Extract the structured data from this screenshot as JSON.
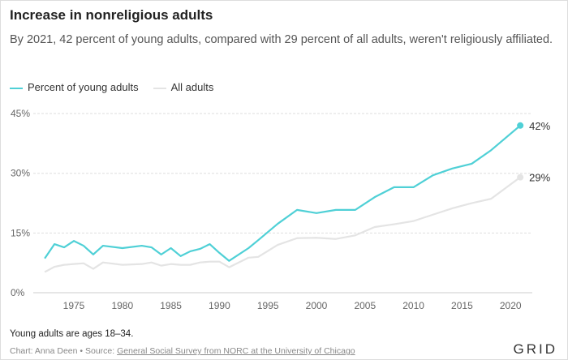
{
  "chart_data": {
    "type": "line",
    "title": "Increase in nonreligious adults",
    "subtitle": "By 2021, 42 percent of young adults, compared with 29 percent of all adults, weren't religiously affiliated.",
    "x": [
      1972,
      1973,
      1974,
      1975,
      1976,
      1977,
      1978,
      1980,
      1982,
      1983,
      1984,
      1985,
      1986,
      1987,
      1988,
      1989,
      1990,
      1991,
      1993,
      1994,
      1996,
      1998,
      2000,
      2002,
      2004,
      2006,
      2008,
      2010,
      2012,
      2014,
      2016,
      2018,
      2021
    ],
    "series": [
      {
        "name": "Percent of young adults",
        "color": "#4fd0d6",
        "end_label": "42%",
        "values": [
          8.6,
          12.2,
          11.4,
          13,
          11.8,
          9.6,
          11.8,
          11.2,
          11.8,
          11.4,
          9.6,
          11.2,
          9.2,
          10.4,
          11,
          12.2,
          10,
          8,
          11.2,
          13.2,
          17.3,
          20.8,
          20,
          20.8,
          20.8,
          24,
          26.5,
          26.5,
          29.5,
          31.2,
          32.4,
          35.8,
          42
        ]
      },
      {
        "name": "All adults",
        "color": "#e4e4e4",
        "end_label": "29%",
        "values": [
          5.2,
          6.5,
          7,
          7.2,
          7.4,
          6,
          7.6,
          7,
          7.2,
          7.6,
          6.8,
          7.2,
          7,
          7,
          7.6,
          7.8,
          7.8,
          6.4,
          8.8,
          9,
          12,
          13.7,
          13.8,
          13.5,
          14.4,
          16.5,
          17.2,
          18,
          19.6,
          21.2,
          22.5,
          23.6,
          29
        ]
      }
    ],
    "xticks": [
      "1975",
      "1980",
      "1985",
      "1990",
      "1995",
      "2000",
      "2005",
      "2010",
      "2015",
      "2020"
    ],
    "yticks": [
      "0%",
      "15%",
      "30%",
      "45%"
    ],
    "ylim": [
      0,
      45
    ],
    "xlim": [
      1972,
      2021
    ],
    "grid": true,
    "legend": "top-left"
  },
  "footer": {
    "note": "Young adults are ages 18–34.",
    "credit": "Chart: Anna Deen • Source: ",
    "source_link": "General Social Survey from NORC at the University of Chicago",
    "logo": "GRID"
  }
}
